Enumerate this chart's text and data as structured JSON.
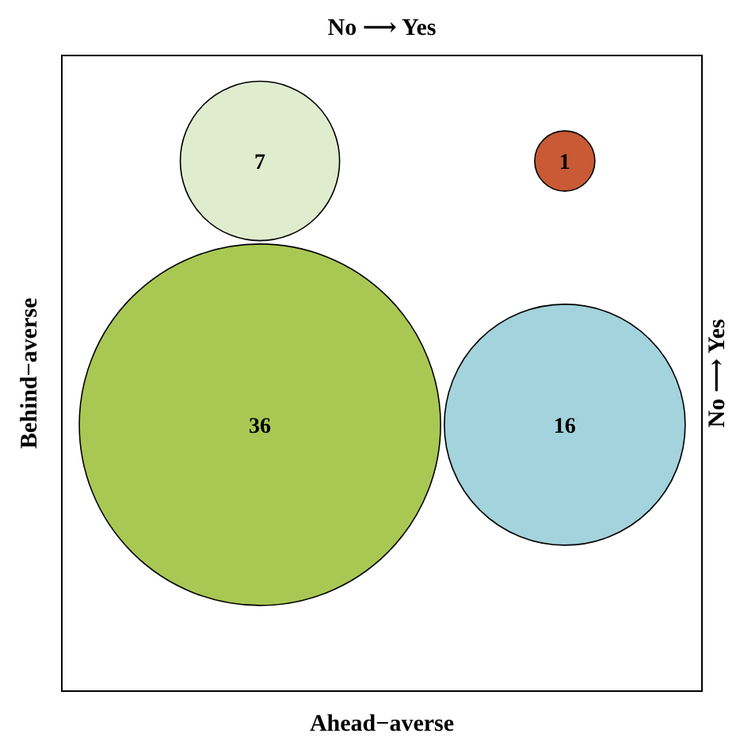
{
  "chart_data": {
    "type": "other",
    "xlabel": "Ahead−averse",
    "ylabel": "Behind−averse",
    "x2label": "No ⟶ Yes",
    "y2label": "No ⟶ Yes",
    "values": [
      7,
      1,
      36,
      16
    ],
    "colors": [
      "#e0ecce",
      "#c85a35",
      "#a9c853",
      "#a3d3dc"
    ],
    "data_labels": true
  }
}
